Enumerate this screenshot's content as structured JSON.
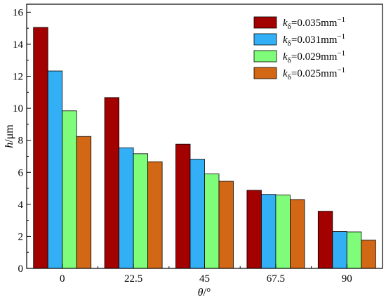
{
  "chart_data": {
    "type": "bar",
    "categories": [
      "0",
      "22.5",
      "45",
      "67.5",
      "90"
    ],
    "series": [
      {
        "name": "kδ=0.035mm⁻¹",
        "color": "#a30000",
        "values": [
          15.05,
          10.67,
          7.76,
          4.88,
          3.57
        ]
      },
      {
        "name": "kδ=0.031mm⁻¹",
        "color": "#33b0f5",
        "values": [
          12.33,
          7.53,
          6.82,
          4.62,
          2.3
        ]
      },
      {
        "name": "kδ=0.029mm⁻¹",
        "color": "#7ffc7a",
        "values": [
          9.84,
          7.16,
          5.9,
          4.58,
          2.28
        ]
      },
      {
        "name": "kδ=0.025mm⁻¹",
        "color": "#d26716",
        "values": [
          8.24,
          6.66,
          5.44,
          4.3,
          1.76
        ]
      }
    ],
    "legend": [
      {
        "sym": "k",
        "sub": "δ",
        "val": "=0.035mm",
        "sup": "−1"
      },
      {
        "sym": "k",
        "sub": "δ",
        "val": "=0.031mm",
        "sup": "−1"
      },
      {
        "sym": "k",
        "sub": "δ",
        "val": "=0.029mm",
        "sup": "−1"
      },
      {
        "sym": "k",
        "sub": "δ",
        "val": "=0.025mm",
        "sup": "−1"
      }
    ],
    "xlabel": {
      "sym": "θ",
      "unit": "/°"
    },
    "ylabel": {
      "sym": "h",
      "unit": "/μm"
    },
    "ylim": [
      0,
      16.5
    ],
    "yticks": [
      0,
      2,
      4,
      6,
      8,
      10,
      12,
      14,
      16
    ],
    "legend_position": "top-right",
    "grid": false
  }
}
